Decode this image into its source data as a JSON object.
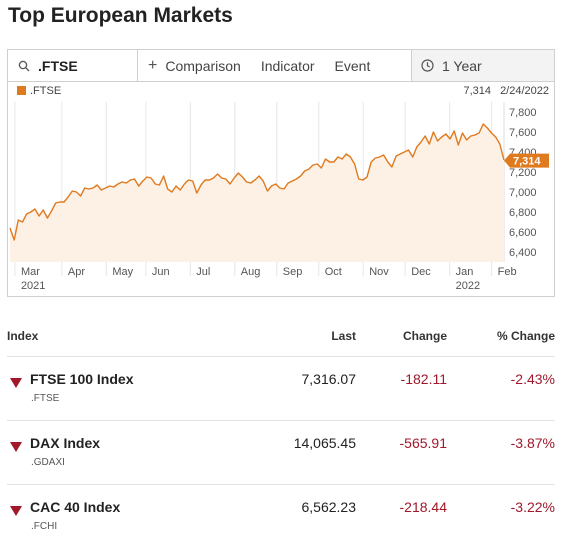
{
  "page": {
    "title": "Top European Markets"
  },
  "toolbar": {
    "symbol": ".FTSE",
    "comparison_label": "Comparison",
    "indicator_label": "Indicator",
    "event_label": "Event",
    "range_label": "1 Year"
  },
  "legend": {
    "series_name": ".FTSE",
    "last_value": "7,314",
    "date": "2/24/2022"
  },
  "colors": {
    "series": "#e07a1f",
    "fill": "#fdf0e4",
    "down": "#a0182a"
  },
  "chart_data": {
    "type": "area",
    "series": [
      {
        "name": ".FTSE",
        "values": [
          6640,
          6520,
          6720,
          6700,
          6780,
          6800,
          6830,
          6760,
          6820,
          6740,
          6810,
          6890,
          6900,
          6900,
          6950,
          7010,
          7000,
          6960,
          7040,
          7030,
          7040,
          7070,
          7020,
          7040,
          7060,
          7050,
          7080,
          7100,
          7090,
          7120,
          7130,
          7060,
          7110,
          7150,
          7140,
          7080,
          7070,
          7160,
          7030,
          7000,
          7060,
          7020,
          7080,
          7120,
          7110,
          6990,
          7070,
          7120,
          7120,
          7140,
          7180,
          7140,
          7130,
          7080,
          7140,
          7190,
          7150,
          7100,
          7090,
          7120,
          7160,
          7110,
          7010,
          7060,
          7080,
          7040,
          7030,
          7090,
          7110,
          7130,
          7160,
          7210,
          7230,
          7270,
          7280,
          7240,
          7330,
          7300,
          7300,
          7350,
          7330,
          7380,
          7350,
          7280,
          7130,
          7120,
          7150,
          7300,
          7340,
          7350,
          7370,
          7300,
          7250,
          7360,
          7380,
          7400,
          7420,
          7350,
          7450,
          7500,
          7560,
          7480,
          7600,
          7510,
          7550,
          7580,
          7530,
          7610,
          7470,
          7590,
          7520,
          7560,
          7570,
          7590,
          7680,
          7640,
          7590,
          7550,
          7480,
          7320
        ]
      }
    ],
    "x_ticks": [
      {
        "label": "Mar",
        "sub": "2021",
        "pos": 0.01
      },
      {
        "label": "Apr",
        "pos": 0.105
      },
      {
        "label": "May",
        "pos": 0.195
      },
      {
        "label": "Jun",
        "pos": 0.275
      },
      {
        "label": "Jul",
        "pos": 0.365
      },
      {
        "label": "Aug",
        "pos": 0.455
      },
      {
        "label": "Sep",
        "pos": 0.54
      },
      {
        "label": "Oct",
        "pos": 0.625
      },
      {
        "label": "Nov",
        "pos": 0.715
      },
      {
        "label": "Dec",
        "pos": 0.8
      },
      {
        "label": "Jan",
        "sub": "2022",
        "pos": 0.89
      },
      {
        "label": "Feb",
        "pos": 0.975
      }
    ],
    "y_ticks": [
      6400,
      6600,
      6800,
      7000,
      7200,
      7400,
      7600,
      7800
    ],
    "y_tick_labels": [
      "6,400",
      "6,600",
      "6,800",
      "7,000",
      "7,200",
      "7,400",
      "7,600",
      "7,800"
    ],
    "ylim": [
      6300,
      7900
    ],
    "last_value": 7314,
    "last_label": "7,314"
  },
  "table": {
    "headers": {
      "index": "Index",
      "last": "Last",
      "change": "Change",
      "pct": "% Change"
    },
    "rows": [
      {
        "name": "FTSE 100 Index",
        "ric": ".FTSE",
        "last": "7,316.07",
        "change": "-182.11",
        "pct": "-2.43%"
      },
      {
        "name": "DAX Index",
        "ric": ".GDAXI",
        "last": "14,065.45",
        "change": "-565.91",
        "pct": "-3.87%"
      },
      {
        "name": "CAC 40 Index",
        "ric": ".FCHI",
        "last": "6,562.23",
        "change": "-218.44",
        "pct": "-3.22%"
      }
    ]
  }
}
